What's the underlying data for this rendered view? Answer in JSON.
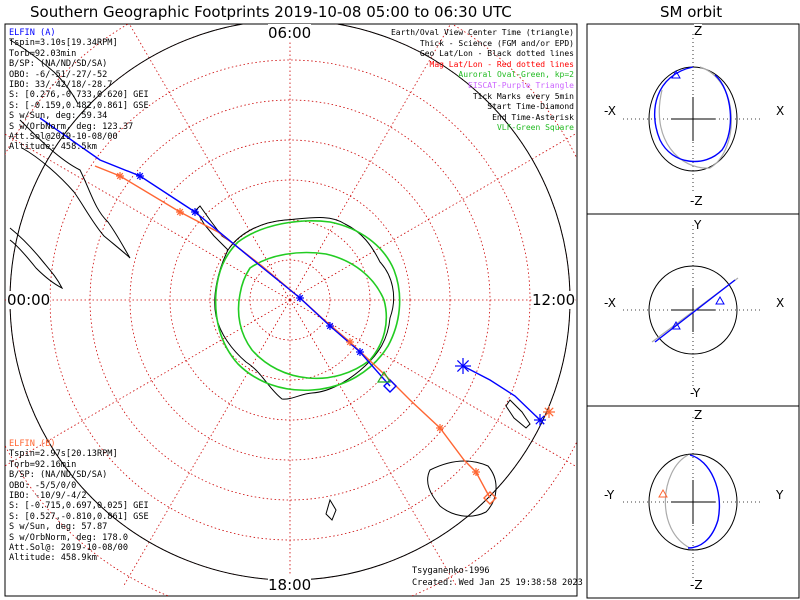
{
  "title": "Southern Geographic Footprints 2019-10-08 05:00 to 06:30 UTC",
  "sm_title": "SM orbit",
  "colors": {
    "elfin_a": "#0000ff",
    "elfin_b": "#ff6633",
    "grid": "#cc0000",
    "auroral": "#22cc22",
    "map": "#000000",
    "eiscat": "#cc66ff"
  },
  "map_ticks": {
    "top": "06:00",
    "left": "00:00",
    "right": "12:00",
    "bottom": "18:00"
  },
  "elfin_a": {
    "name": "ELFIN (A)",
    "lines": [
      "Tspin=3.10s[19.34RPM]",
      "Torb=92.03min",
      "B/SP: (NA/ND/SD/SA)",
      "OBO: -6/-51/-27/-52",
      "IBO: 33/-42/18/-28.7",
      "S: [0.276,-0.733,0.620] GEI",
      "S: [-0.159,0.482,0.861] GSE",
      "S w/Sun, deg: 59.34",
      "S w/OrbNorm, deg: 123.37",
      "Att.Sol@2019-10-08/00",
      "Altitude: 458.5km"
    ]
  },
  "elfin_b": {
    "name": "ELFIN (B)",
    "lines": [
      "Tspin=2.97s[20.13RPM]",
      "Torb=92.16min",
      "B/SP: (NA/ND/SD/SA)",
      "OBO: -5/5/0/0",
      "IBO: -10/9/-4/2",
      "S: [-0.715,0.697,0.025] GEI",
      "S: [0.527,-0.810,0.861] GSE",
      "S w/Sun, deg: 57.87",
      "S w/OrbNorm, deg: 178.0",
      "Att.Sol@: 2019-10-08/00",
      "Altitude: 458.9km"
    ]
  },
  "legend": [
    {
      "text": "Earth/Oval View Center Time (triangle)",
      "color": "#000000"
    },
    {
      "text": "Thick - Science (FGM and/or EPD)",
      "color": "#000000"
    },
    {
      "text": "Geo Lat/Lon - Black dotted lines",
      "color": "#000000"
    },
    {
      "text": "Mag Lat/Lon - Red dotted lines",
      "color": "#ff0000"
    },
    {
      "text": "Auroral Oval-Green, kp=2",
      "color": "#22bb22"
    },
    {
      "text": "EISCAT-Purple Triangle",
      "color": "#cc66ff"
    },
    {
      "text": "Tick Marks every 5min",
      "color": "#000000"
    },
    {
      "text": "Start Time-Diamond",
      "color": "#000000"
    },
    {
      "text": "End Time-Asterisk",
      "color": "#000000"
    },
    {
      "text": "VLF-Green Square",
      "color": "#22bb22"
    }
  ],
  "footer": {
    "model": "Tsyganenko-1996",
    "created": "Created: Wed Jan 25 19:38:58 2023"
  },
  "sm_panels": [
    {
      "top_label": "Z",
      "bottom_label": "-Z",
      "left_label": "-X",
      "right_label": "X"
    },
    {
      "top_label": "Y",
      "bottom_label": "-Y",
      "left_label": "-X",
      "right_label": "X"
    },
    {
      "top_label": "Z",
      "bottom_label": "-Z",
      "left_label": "-Y",
      "right_label": "Y"
    }
  ]
}
